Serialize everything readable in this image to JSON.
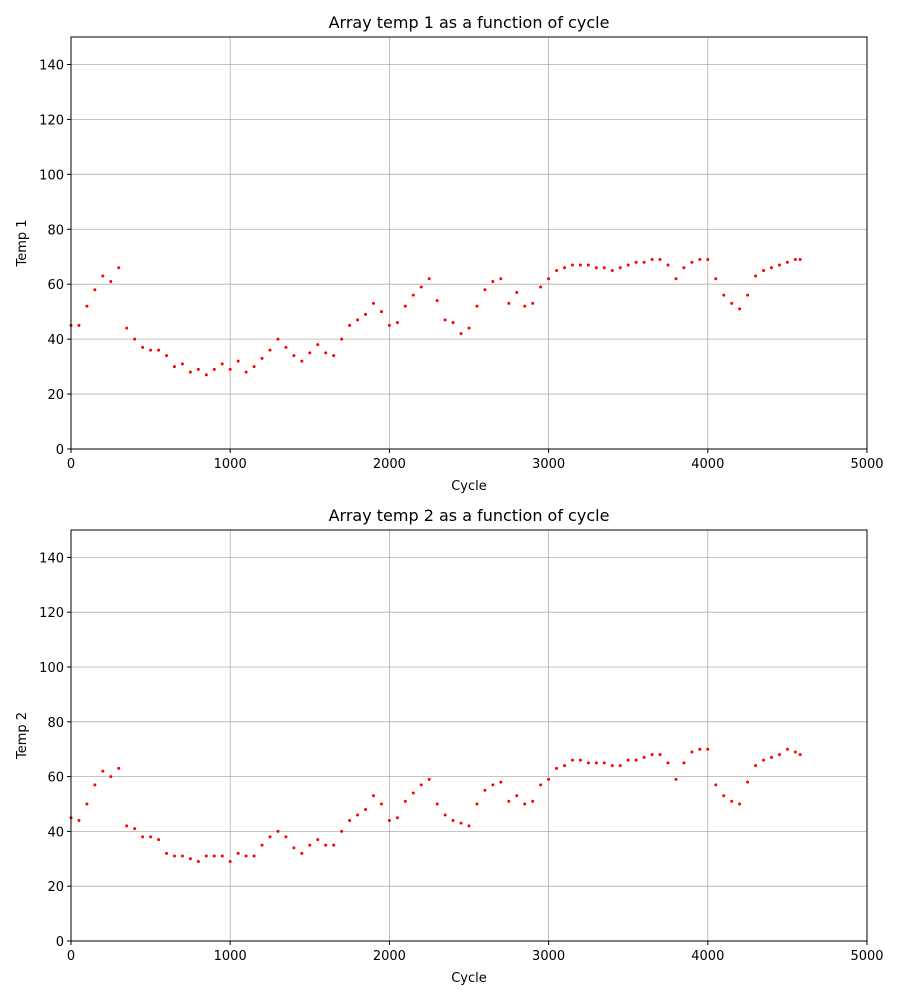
{
  "chart_data": [
    {
      "type": "scatter",
      "title": "Array temp 1 as a function of cycle",
      "xlabel": "Cycle",
      "ylabel": "Temp 1",
      "color": "#ff0000",
      "grid": true,
      "xlim": [
        0,
        5000
      ],
      "xticks": [
        0,
        1000,
        2000,
        3000,
        4000,
        5000
      ],
      "ylim": [
        0,
        150
      ],
      "yticks": [
        0,
        20,
        40,
        60,
        80,
        100,
        120,
        140
      ],
      "x": [
        0,
        50,
        100,
        150,
        200,
        250,
        300,
        350,
        400,
        450,
        500,
        550,
        600,
        650,
        700,
        750,
        800,
        850,
        900,
        950,
        1000,
        1050,
        1100,
        1150,
        1200,
        1250,
        1300,
        1350,
        1400,
        1450,
        1500,
        1550,
        1600,
        1650,
        1700,
        1750,
        1800,
        1850,
        1900,
        1950,
        2000,
        2050,
        2100,
        2150,
        2200,
        2250,
        2300,
        2350,
        2400,
        2450,
        2500,
        2550,
        2600,
        2650,
        2700,
        2750,
        2800,
        2850,
        2900,
        2950,
        3000,
        3050,
        3100,
        3150,
        3200,
        3250,
        3300,
        3350,
        3400,
        3450,
        3500,
        3550,
        3600,
        3650,
        3700,
        3750,
        3800,
        3850,
        3900,
        3950,
        4000,
        4050,
        4100,
        4150,
        4200,
        4250,
        4300,
        4350,
        4400,
        4450,
        4500,
        4550,
        4580
      ],
      "values": [
        45,
        45,
        52,
        58,
        63,
        61,
        66,
        44,
        40,
        37,
        36,
        36,
        34,
        30,
        31,
        28,
        29,
        27,
        29,
        31,
        29,
        32,
        28,
        30,
        33,
        36,
        40,
        37,
        34,
        32,
        35,
        38,
        35,
        34,
        40,
        45,
        47,
        49,
        53,
        50,
        45,
        46,
        52,
        56,
        59,
        62,
        54,
        47,
        46,
        42,
        44,
        52,
        58,
        61,
        62,
        53,
        57,
        52,
        53,
        59,
        62,
        65,
        66,
        67,
        67,
        67,
        66,
        66,
        65,
        66,
        67,
        68,
        68,
        69,
        69,
        67,
        62,
        66,
        68,
        69,
        69,
        62,
        56,
        53,
        51,
        56,
        63,
        65,
        66,
        67,
        68,
        69,
        69
      ]
    },
    {
      "type": "scatter",
      "title": "Array temp 2 as a function of cycle",
      "xlabel": "Cycle",
      "ylabel": "Temp 2",
      "color": "#ff0000",
      "grid": true,
      "xlim": [
        0,
        5000
      ],
      "xticks": [
        0,
        1000,
        2000,
        3000,
        4000,
        5000
      ],
      "ylim": [
        0,
        150
      ],
      "yticks": [
        0,
        20,
        40,
        60,
        80,
        100,
        120,
        140
      ],
      "x": [
        0,
        50,
        100,
        150,
        200,
        250,
        300,
        350,
        400,
        450,
        500,
        550,
        600,
        650,
        700,
        750,
        800,
        850,
        900,
        950,
        1000,
        1050,
        1100,
        1150,
        1200,
        1250,
        1300,
        1350,
        1400,
        1450,
        1500,
        1550,
        1600,
        1650,
        1700,
        1750,
        1800,
        1850,
        1900,
        1950,
        2000,
        2050,
        2100,
        2150,
        2200,
        2250,
        2300,
        2350,
        2400,
        2450,
        2500,
        2550,
        2600,
        2650,
        2700,
        2750,
        2800,
        2850,
        2900,
        2950,
        3000,
        3050,
        3100,
        3150,
        3200,
        3250,
        3300,
        3350,
        3400,
        3450,
        3500,
        3550,
        3600,
        3650,
        3700,
        3750,
        3800,
        3850,
        3900,
        3950,
        4000,
        4050,
        4100,
        4150,
        4200,
        4250,
        4300,
        4350,
        4400,
        4450,
        4500,
        4550,
        4580
      ],
      "values": [
        45,
        44,
        50,
        57,
        62,
        60,
        63,
        42,
        41,
        38,
        38,
        37,
        32,
        31,
        31,
        30,
        29,
        31,
        31,
        31,
        29,
        32,
        31,
        31,
        35,
        38,
        40,
        38,
        34,
        32,
        35,
        37,
        35,
        35,
        40,
        44,
        46,
        48,
        53,
        50,
        44,
        45,
        51,
        54,
        57,
        59,
        50,
        46,
        44,
        43,
        42,
        50,
        55,
        57,
        58,
        51,
        53,
        50,
        51,
        57,
        59,
        63,
        64,
        66,
        66,
        65,
        65,
        65,
        64,
        64,
        66,
        66,
        67,
        68,
        68,
        65,
        59,
        65,
        69,
        70,
        70,
        57,
        53,
        51,
        50,
        58,
        64,
        66,
        67,
        68,
        70,
        69,
        68
      ]
    }
  ]
}
